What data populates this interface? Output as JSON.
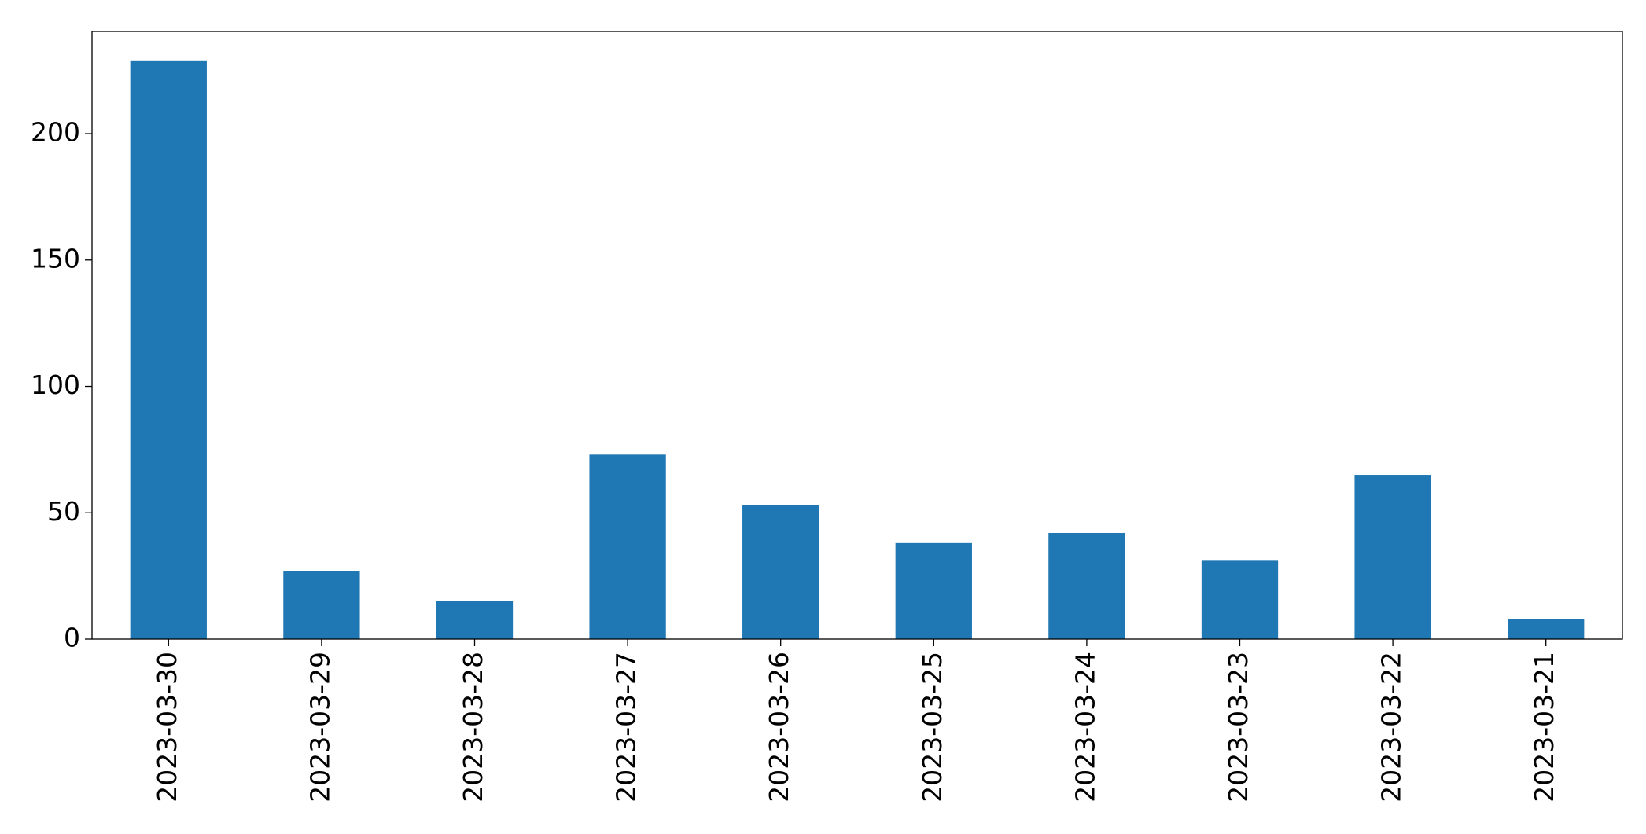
{
  "chart_data": {
    "type": "bar",
    "categories": [
      "2023-03-30",
      "2023-03-29",
      "2023-03-28",
      "2023-03-27",
      "2023-03-26",
      "2023-03-25",
      "2023-03-24",
      "2023-03-23",
      "2023-03-22",
      "2023-03-21"
    ],
    "values": [
      229,
      27,
      15,
      73,
      53,
      38,
      42,
      31,
      65,
      8
    ],
    "color": "#1f77b4",
    "ylim": [
      0,
      240.45
    ],
    "yticks": [
      0,
      50,
      100,
      150,
      200
    ],
    "grid": false
  }
}
